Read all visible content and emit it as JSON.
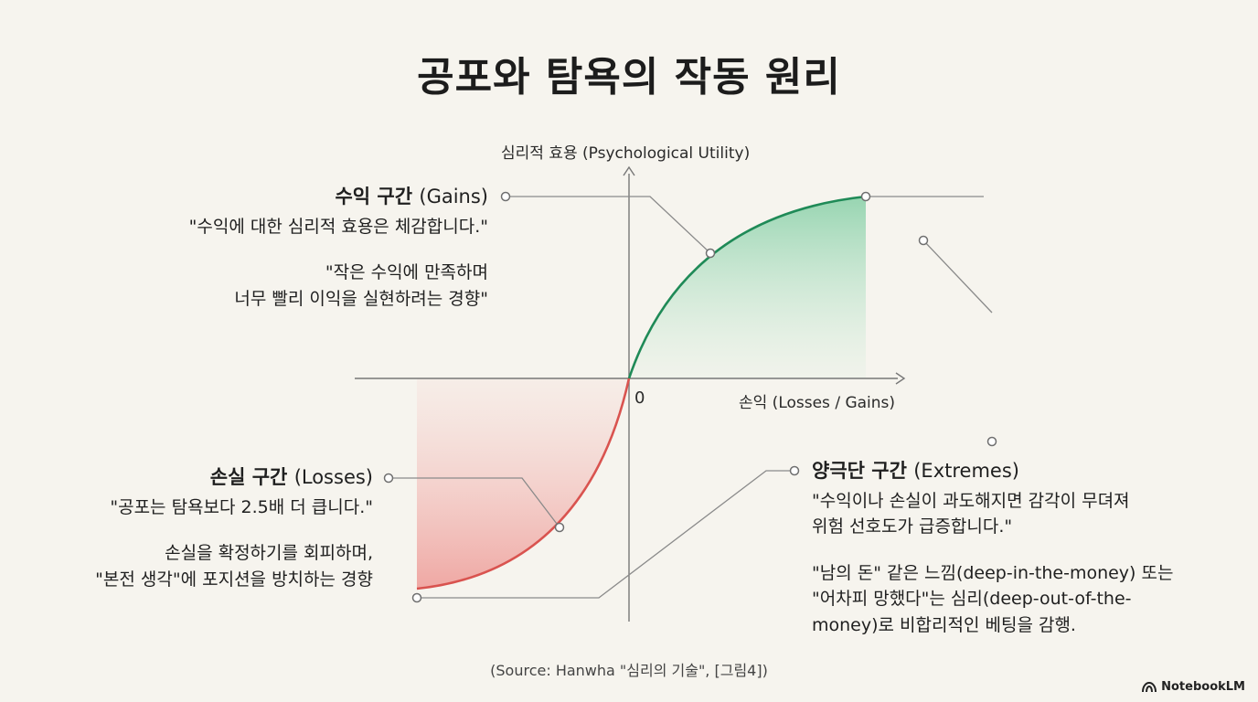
{
  "title": "공포와 탐욕의 작동 원리",
  "axes": {
    "y_label": "심리적 효용 (Psychological Utility)",
    "x_label": "손익 (Losses / Gains)",
    "origin_label": "0"
  },
  "colors": {
    "gains": "#1f8a57",
    "losses": "#d9534f",
    "leader": "#8a8a8a",
    "background": "#f6f4ee"
  },
  "gains": {
    "head_ko": "수익 구간",
    "head_en": "(Gains)",
    "quote": "\"수익에 대한 심리적 효용은 체감합니다.\"",
    "desc_line1": "\"작은 수익에 만족하며",
    "desc_line2": "너무 빨리 이익을 실현하려는 경향\""
  },
  "losses": {
    "head_ko": "손실 구간",
    "head_en": "(Losses)",
    "quote": "\"공포는 탐욕보다 2.5배 더 큽니다.\"",
    "desc_line1": "손실을 확정하기를 회피하며,",
    "desc_line2": "\"본전 생각\"에 포지션을 방치하는 경향"
  },
  "extremes": {
    "head_ko": "양극단 구간",
    "head_en": "(Extremes)",
    "quote_line1": "\"수익이나 손실이 과도해지면 감각이 무뎌져",
    "quote_line2": "위험 선호도가 급증합니다.\"",
    "desc_line1": "\"남의 돈\" 같은 느낌(deep-in-the-money) 또는",
    "desc_line2": "\"어차피 망했다\"는 심리(deep-out-of-the-",
    "desc_line3": "money)로 비합리적인 베팅을 감행."
  },
  "source": "(Source: Hanwha \"심리의 기술\", [그림4])",
  "brand": "NotebookLM"
}
